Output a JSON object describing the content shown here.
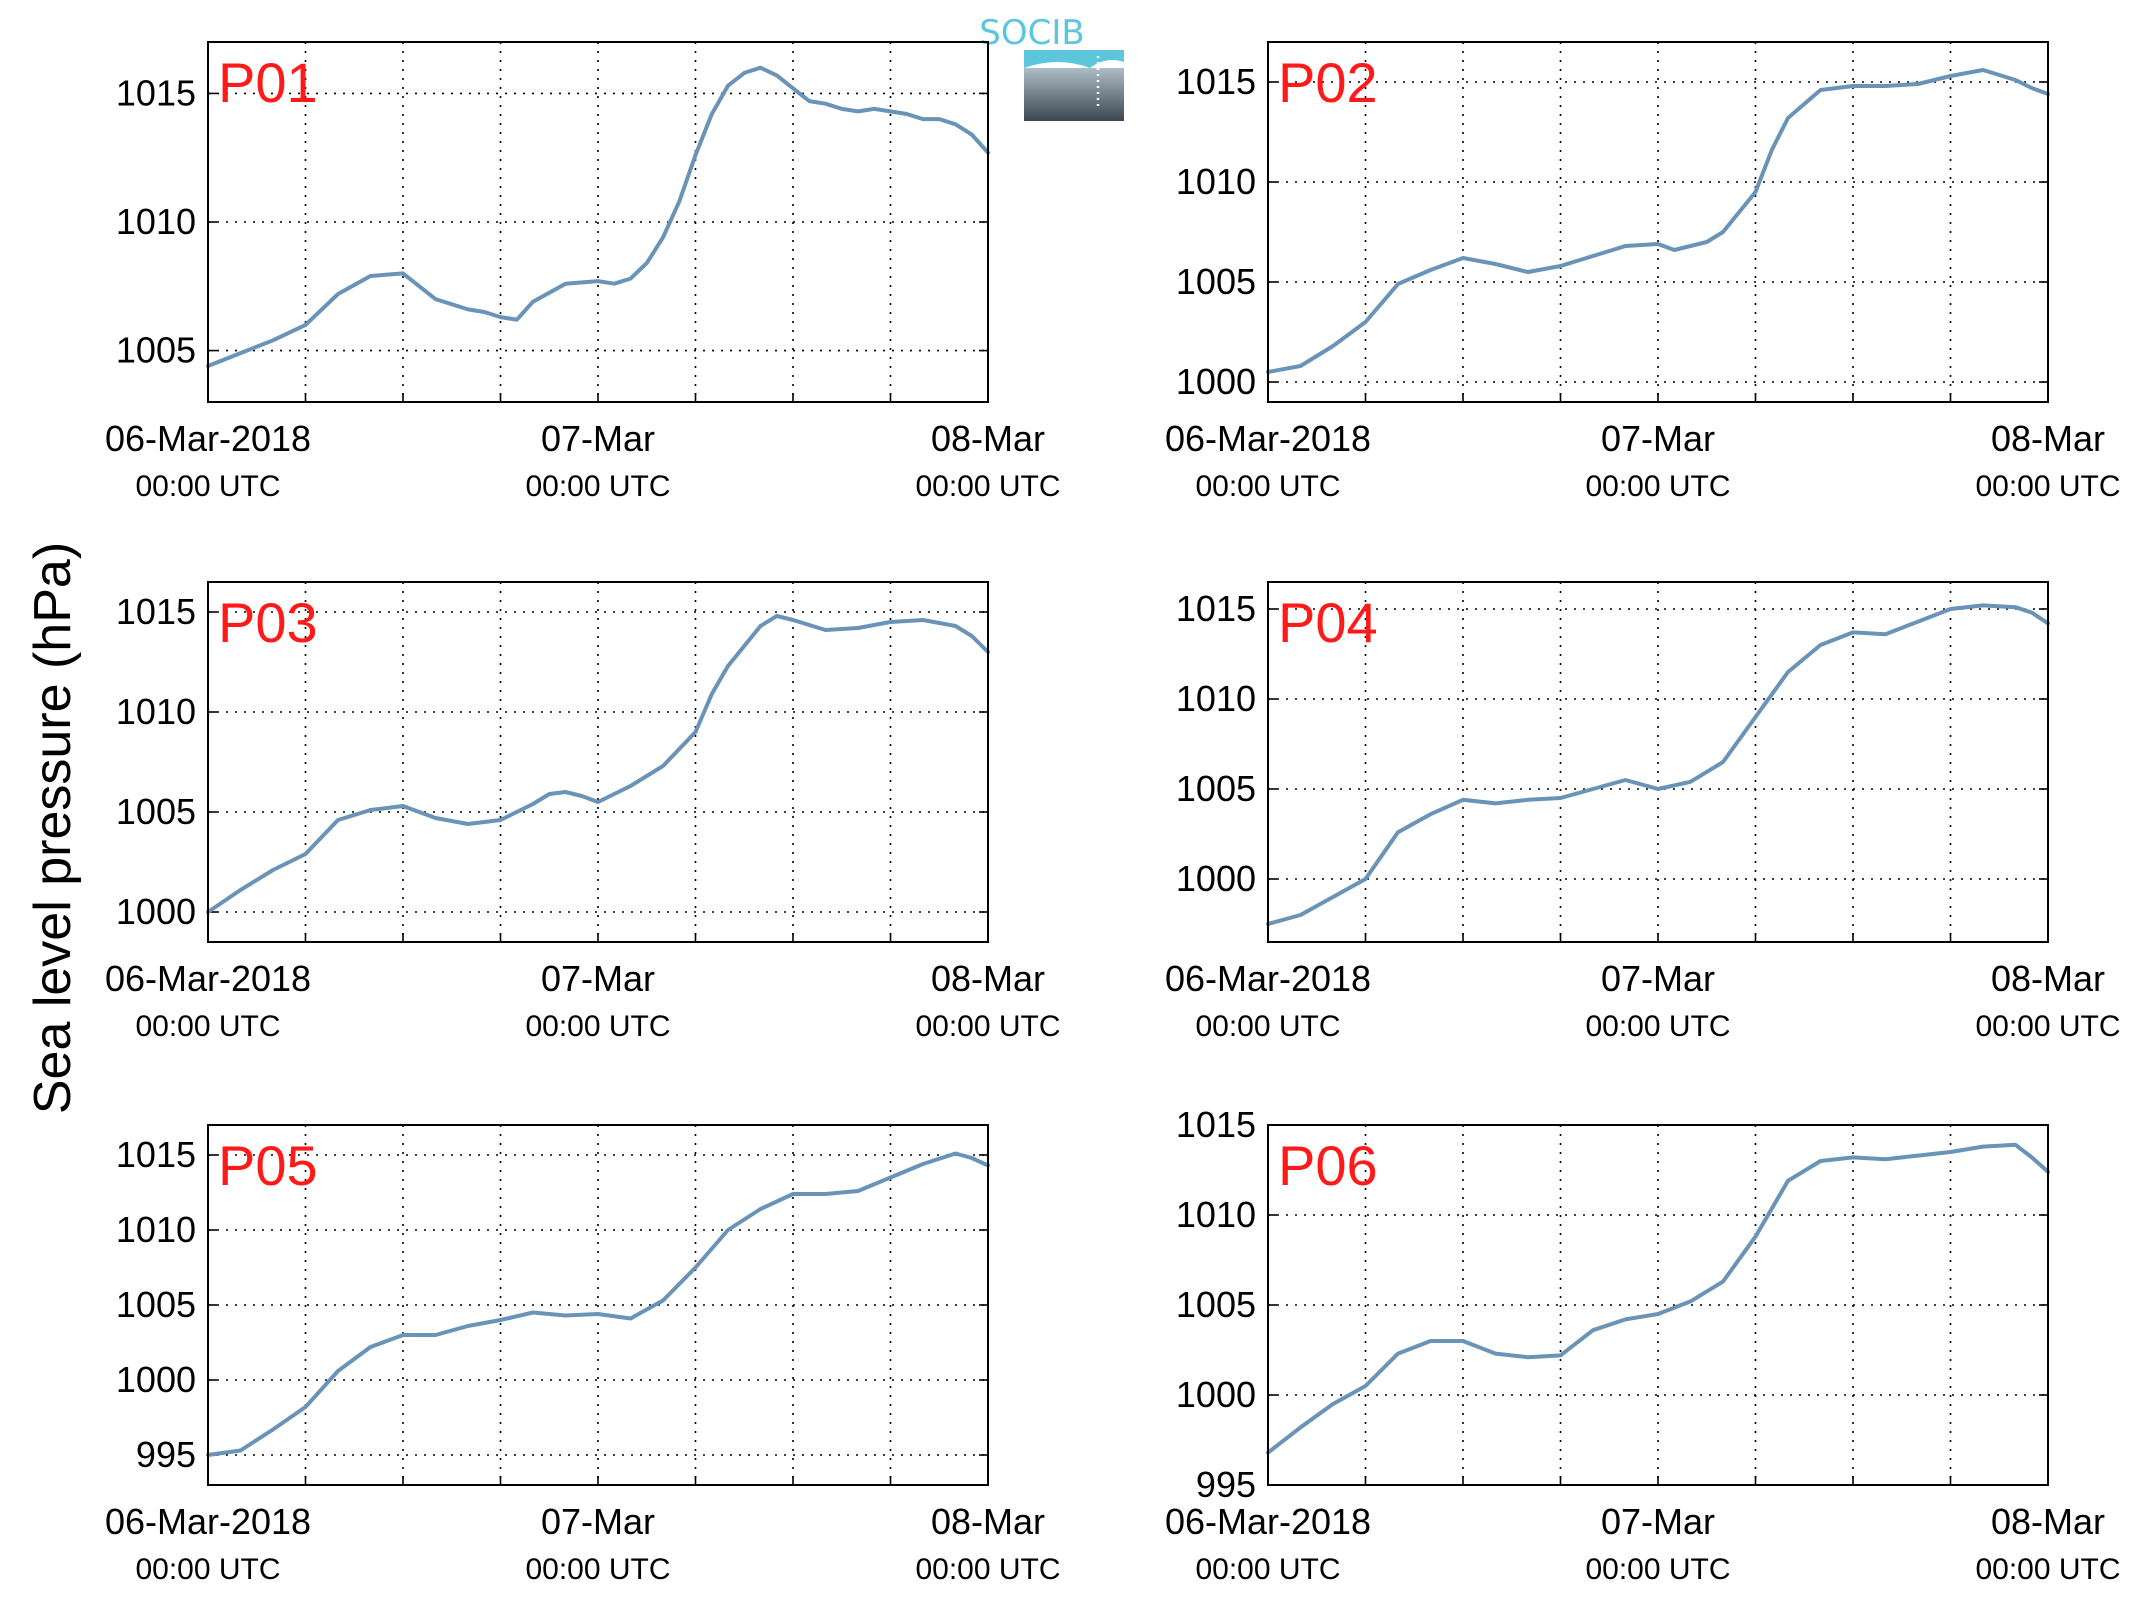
{
  "figure": {
    "ylabel": "Sea level pressure (hPa)",
    "logo_text": "SOCIB",
    "colors": {
      "line": "#6a93b8",
      "panel_label": "#ff1a1a",
      "axes": "#000000",
      "grid": "#000000"
    }
  },
  "chart_data": [
    {
      "type": "line",
      "title": "P01",
      "x_ticks": [
        {
          "top": "06-Mar-2018",
          "bottom": "00:00 UTC"
        },
        {
          "top": "07-Mar",
          "bottom": "00:00 UTC"
        },
        {
          "top": "08-Mar",
          "bottom": "00:00 UTC"
        }
      ],
      "xlim_hours": [
        0,
        48
      ],
      "xgrid_every_hours": 6,
      "ylim": [
        1003,
        1017
      ],
      "yticks": [
        1005,
        1010,
        1015
      ],
      "grid": "dotted",
      "series": [
        {
          "x_hours": [
            0,
            2,
            4,
            6,
            7,
            8,
            10,
            12,
            14,
            16,
            17,
            18,
            19,
            20,
            22,
            24,
            25,
            26,
            27,
            28,
            29,
            30,
            31,
            32,
            33,
            34,
            35,
            36,
            37,
            38,
            39,
            40,
            41,
            42,
            43,
            44,
            45,
            46,
            47,
            48
          ],
          "values": [
            1004.4,
            1004.9,
            1005.4,
            1006.0,
            1006.6,
            1007.2,
            1007.9,
            1008.0,
            1007.0,
            1006.6,
            1006.5,
            1006.3,
            1006.2,
            1006.9,
            1007.6,
            1007.7,
            1007.6,
            1007.8,
            1008.4,
            1009.4,
            1010.8,
            1012.6,
            1014.2,
            1015.3,
            1015.8,
            1016.0,
            1015.7,
            1015.2,
            1014.7,
            1014.6,
            1014.4,
            1014.3,
            1014.4,
            1014.3,
            1014.2,
            1014.0,
            1014.0,
            1013.8,
            1013.4,
            1012.7
          ]
        }
      ]
    },
    {
      "type": "line",
      "title": "P02",
      "x_ticks": [
        {
          "top": "06-Mar-2018",
          "bottom": "00:00 UTC"
        },
        {
          "top": "07-Mar",
          "bottom": "00:00 UTC"
        },
        {
          "top": "08-Mar",
          "bottom": "00:00 UTC"
        }
      ],
      "xlim_hours": [
        0,
        48
      ],
      "xgrid_every_hours": 6,
      "ylim": [
        999,
        1017
      ],
      "yticks": [
        1000,
        1005,
        1010,
        1015
      ],
      "grid": "dotted",
      "series": [
        {
          "x_hours": [
            0,
            2,
            4,
            6,
            8,
            10,
            12,
            14,
            16,
            18,
            20,
            22,
            24,
            25,
            26,
            27,
            28,
            30,
            31,
            32,
            34,
            36,
            38,
            40,
            42,
            44,
            46,
            47,
            48
          ],
          "values": [
            1000.5,
            1000.8,
            1001.8,
            1003.0,
            1004.9,
            1005.6,
            1006.2,
            1005.9,
            1005.5,
            1005.8,
            1006.3,
            1006.8,
            1006.9,
            1006.6,
            1006.8,
            1007.0,
            1007.5,
            1009.5,
            1011.6,
            1013.2,
            1014.6,
            1014.8,
            1014.8,
            1014.9,
            1015.3,
            1015.6,
            1015.1,
            1014.7,
            1014.4
          ]
        }
      ]
    },
    {
      "type": "line",
      "title": "P03",
      "x_ticks": [
        {
          "top": "06-Mar-2018",
          "bottom": "00:00 UTC"
        },
        {
          "top": "07-Mar",
          "bottom": "00:00 UTC"
        },
        {
          "top": "08-Mar",
          "bottom": "00:00 UTC"
        }
      ],
      "xlim_hours": [
        0,
        48
      ],
      "xgrid_every_hours": 6,
      "ylim": [
        998.5,
        1016.5
      ],
      "yticks": [
        1000,
        1005,
        1010,
        1015
      ],
      "grid": "dotted",
      "series": [
        {
          "x_hours": [
            0,
            2,
            4,
            6,
            8,
            10,
            12,
            14,
            16,
            18,
            20,
            21,
            22,
            23,
            24,
            26,
            28,
            30,
            31,
            32,
            34,
            35,
            36,
            38,
            40,
            42,
            44,
            46,
            47,
            48
          ],
          "values": [
            1000.0,
            1001.1,
            1002.1,
            1002.9,
            1004.6,
            1005.1,
            1005.3,
            1004.7,
            1004.4,
            1004.6,
            1005.4,
            1005.9,
            1006.0,
            1005.8,
            1005.5,
            1006.3,
            1007.3,
            1009.0,
            1010.9,
            1012.3,
            1014.3,
            1014.8,
            1014.6,
            1014.1,
            1014.2,
            1014.5,
            1014.6,
            1014.3,
            1013.8,
            1013.0
          ]
        }
      ]
    },
    {
      "type": "line",
      "title": "P04",
      "x_ticks": [
        {
          "top": "06-Mar-2018",
          "bottom": "00:00 UTC"
        },
        {
          "top": "07-Mar",
          "bottom": "00:00 UTC"
        },
        {
          "top": "08-Mar",
          "bottom": "00:00 UTC"
        }
      ],
      "xlim_hours": [
        0,
        48
      ],
      "xgrid_every_hours": 6,
      "ylim": [
        996.5,
        1016.5
      ],
      "yticks": [
        1000,
        1005,
        1010,
        1015
      ],
      "grid": "dotted",
      "series": [
        {
          "x_hours": [
            0,
            2,
            4,
            6,
            8,
            10,
            12,
            14,
            16,
            18,
            20,
            22,
            24,
            26,
            28,
            30,
            32,
            34,
            36,
            38,
            40,
            42,
            44,
            46,
            47,
            48
          ],
          "values": [
            997.5,
            998.0,
            999.0,
            1000.0,
            1002.6,
            1003.6,
            1004.4,
            1004.2,
            1004.4,
            1004.5,
            1005.0,
            1005.5,
            1005.0,
            1005.4,
            1006.5,
            1009.0,
            1011.5,
            1013.0,
            1013.7,
            1013.6,
            1014.3,
            1015.0,
            1015.2,
            1015.1,
            1014.8,
            1014.2
          ]
        }
      ]
    },
    {
      "type": "line",
      "title": "P05",
      "x_ticks": [
        {
          "top": "06-Mar-2018",
          "bottom": "00:00 UTC"
        },
        {
          "top": "07-Mar",
          "bottom": "00:00 UTC"
        },
        {
          "top": "08-Mar",
          "bottom": "00:00 UTC"
        }
      ],
      "xlim_hours": [
        0,
        48
      ],
      "xgrid_every_hours": 6,
      "ylim": [
        993,
        1017
      ],
      "yticks": [
        995,
        1000,
        1005,
        1010,
        1015
      ],
      "grid": "dotted",
      "series": [
        {
          "x_hours": [
            0,
            2,
            4,
            6,
            8,
            10,
            12,
            14,
            16,
            18,
            20,
            22,
            24,
            26,
            28,
            30,
            32,
            34,
            36,
            38,
            40,
            42,
            44,
            46,
            47,
            48
          ],
          "values": [
            995.0,
            995.3,
            996.7,
            998.2,
            1000.6,
            1002.2,
            1003.0,
            1003.0,
            1003.6,
            1004.0,
            1004.5,
            1004.3,
            1004.4,
            1004.1,
            1005.3,
            1007.5,
            1010.0,
            1011.4,
            1012.4,
            1012.4,
            1012.6,
            1013.5,
            1014.4,
            1015.1,
            1014.8,
            1014.3
          ]
        }
      ]
    },
    {
      "type": "line",
      "title": "P06",
      "x_ticks": [
        {
          "top": "06-Mar-2018",
          "bottom": "00:00 UTC"
        },
        {
          "top": "07-Mar",
          "bottom": "00:00 UTC"
        },
        {
          "top": "08-Mar",
          "bottom": "00:00 UTC"
        }
      ],
      "xlim_hours": [
        0,
        48
      ],
      "xgrid_every_hours": 6,
      "ylim": [
        995,
        1015
      ],
      "yticks": [
        995,
        1000,
        1005,
        1010,
        1015
      ],
      "grid": "dotted",
      "series": [
        {
          "x_hours": [
            0,
            2,
            4,
            6,
            8,
            10,
            12,
            14,
            16,
            18,
            20,
            22,
            24,
            26,
            28,
            30,
            32,
            34,
            36,
            38,
            40,
            42,
            44,
            46,
            47,
            48
          ],
          "values": [
            996.8,
            998.2,
            999.5,
            1000.5,
            1002.3,
            1003.0,
            1003.0,
            1002.3,
            1002.1,
            1002.2,
            1003.6,
            1004.2,
            1004.5,
            1005.2,
            1006.3,
            1008.8,
            1011.9,
            1013.0,
            1013.2,
            1013.1,
            1013.3,
            1013.5,
            1013.8,
            1013.9,
            1013.2,
            1012.4
          ]
        }
      ]
    }
  ]
}
